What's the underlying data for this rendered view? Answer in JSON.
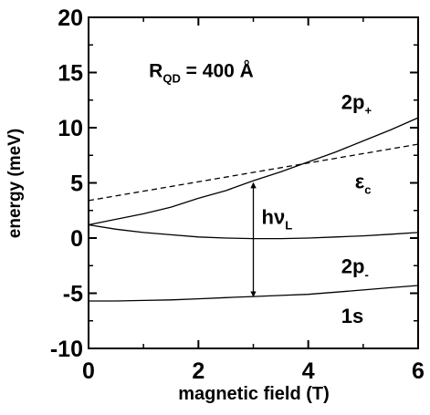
{
  "chart_data": {
    "type": "line",
    "title": "",
    "xlabel": "magnetic field (T)",
    "ylabel": "energy (meV)",
    "xlim": [
      0,
      6
    ],
    "ylim": [
      -10,
      20
    ],
    "x_ticks": [
      0,
      2,
      4,
      6
    ],
    "y_ticks": [
      -10,
      -5,
      0,
      5,
      10,
      15,
      20
    ],
    "x_tick_labels": [
      "0",
      "2",
      "4",
      "6"
    ],
    "y_tick_labels": [
      "-10",
      "-5",
      "0",
      "5",
      "10",
      "15",
      "20"
    ],
    "grid": false,
    "legend": "none",
    "series": [
      {
        "key": "2p+",
        "style": "solid",
        "x": [
          0,
          0.5,
          1,
          1.5,
          2,
          2.5,
          3,
          3.5,
          4,
          4.5,
          5,
          5.5,
          6
        ],
        "y": [
          1.2,
          1.7,
          2.2,
          2.8,
          3.6,
          4.3,
          5.2,
          6.0,
          6.9,
          7.8,
          8.8,
          9.8,
          10.9
        ]
      },
      {
        "key": "2p-",
        "style": "solid",
        "x": [
          0,
          0.5,
          1,
          1.5,
          2,
          2.5,
          3,
          3.5,
          4,
          4.5,
          5,
          5.5,
          6
        ],
        "y": [
          1.2,
          0.8,
          0.5,
          0.3,
          0.1,
          0.0,
          -0.05,
          -0.05,
          0.0,
          0.1,
          0.2,
          0.35,
          0.5
        ]
      },
      {
        "key": "1s",
        "style": "solid",
        "x": [
          0,
          0.5,
          1,
          1.5,
          2,
          2.5,
          3,
          3.5,
          4,
          4.5,
          5,
          5.5,
          6
        ],
        "y": [
          -5.7,
          -5.7,
          -5.65,
          -5.6,
          -5.5,
          -5.4,
          -5.3,
          -5.2,
          -5.1,
          -4.9,
          -4.7,
          -4.5,
          -4.3
        ]
      },
      {
        "key": "eps_c",
        "style": "dashed",
        "x": [
          0,
          6
        ],
        "y": [
          3.4,
          8.5
        ]
      }
    ],
    "annotations": {
      "r_qd": {
        "main": "R",
        "sub": "QD",
        "rest": " = 400 Å",
        "x": 1.1,
        "y": 14.6
      },
      "label_2p_plus": {
        "main": "2p",
        "sub": "+",
        "x": 4.6,
        "y": 11.7
      },
      "label_eps_c": {
        "main": "ε",
        "sub": "c",
        "x": 4.85,
        "y": 4.5
      },
      "label_hnu": {
        "main": "hν",
        "sub": "L",
        "x": 3.15,
        "y": 1.3
      },
      "label_2p_minus": {
        "main": "2p",
        "sub": "-",
        "x": 4.6,
        "y": -3.2
      },
      "label_1s": {
        "main": "1s",
        "x": 4.6,
        "y": -7.7
      }
    },
    "arrow": {
      "x": 3.0,
      "y_top": 5.0,
      "y_bottom": -5.3
    }
  }
}
